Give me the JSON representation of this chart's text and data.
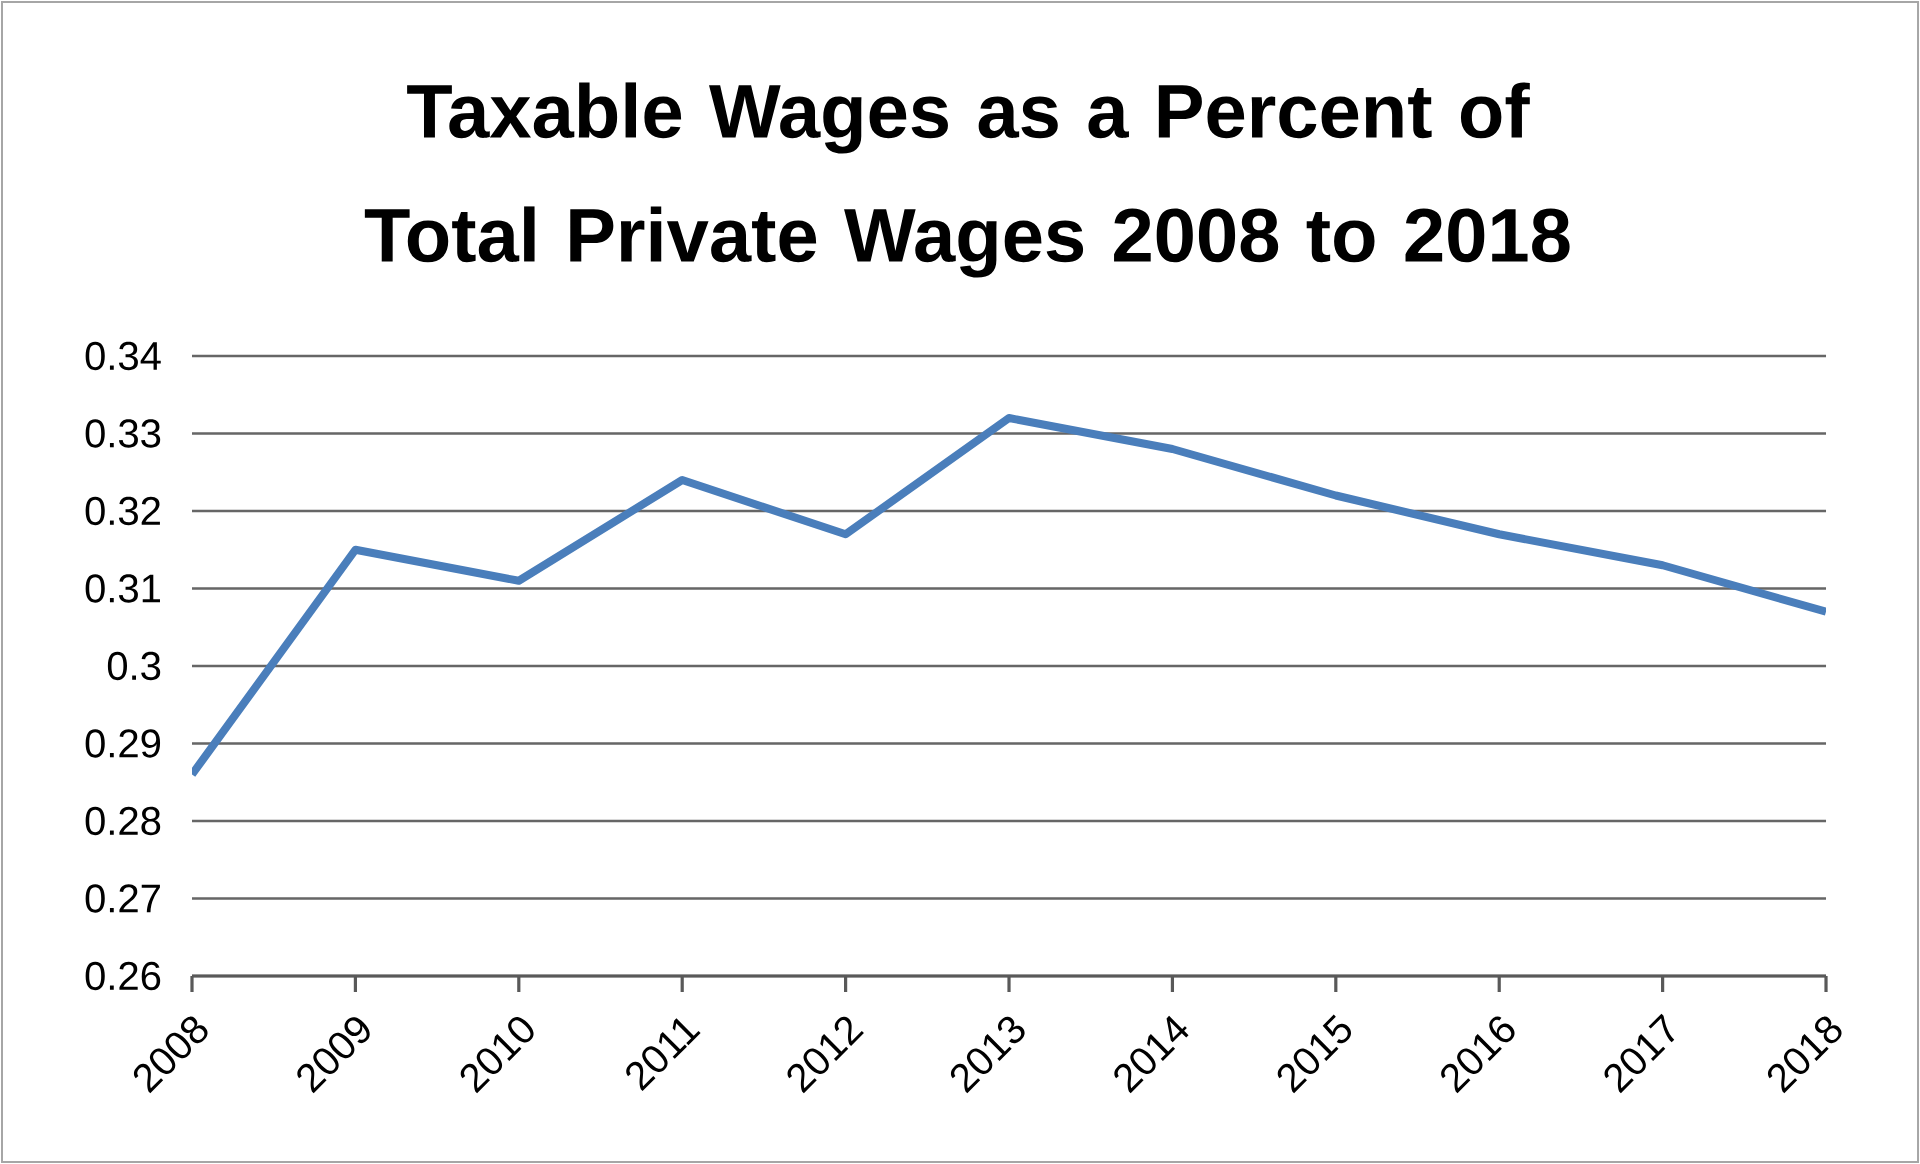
{
  "chart_data": {
    "type": "line",
    "title": "Taxable Wages as a Percent of Total Private Wages 2008 to 2018",
    "categories": [
      "2008",
      "2009",
      "2010",
      "2011",
      "2012",
      "2013",
      "2014",
      "2015",
      "2016",
      "2017",
      "2018"
    ],
    "series": [
      {
        "color": "#4a7ebb",
        "values": [
          0.286,
          0.315,
          0.311,
          0.324,
          0.317,
          0.332,
          0.328,
          0.322,
          0.317,
          0.313,
          0.307
        ]
      }
    ],
    "ylim": [
      0.26,
      0.34
    ],
    "yticks": [
      0.26,
      0.27,
      0.28,
      0.29,
      0.3,
      0.31,
      0.32,
      0.33,
      0.34
    ],
    "grid": "y",
    "marker": "none",
    "line_style": "solid"
  }
}
